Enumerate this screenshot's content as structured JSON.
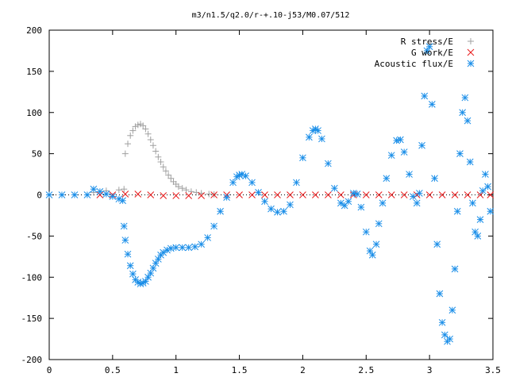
{
  "chart_data": {
    "type": "scatter",
    "title": "m3/n1.5/q2.0/r-+.10-j53/M0.07/512",
    "xlabel": "",
    "ylabel": "",
    "xlim": [
      0,
      3.5
    ],
    "ylim": [
      -200,
      200
    ],
    "x_ticks": [
      "0",
      "0.5",
      "1",
      "1.5",
      "2",
      "2.5",
      "3",
      "3.5"
    ],
    "y_ticks": [
      "200",
      "150",
      "100",
      "50",
      "0",
      "-50",
      "-100",
      "-150",
      "-200"
    ],
    "x_tick_values": [
      0,
      0.5,
      1,
      1.5,
      2,
      2.5,
      3,
      3.5
    ],
    "y_tick_values": [
      200,
      150,
      100,
      50,
      0,
      -50,
      -100,
      -150,
      -200
    ],
    "grid": false,
    "legend_position": "top-right",
    "series": [
      {
        "name": "R stress/E",
        "marker": "plus",
        "color": "#a0a0a0",
        "points": [
          [
            0.35,
            3
          ],
          [
            0.45,
            5
          ],
          [
            0.55,
            6
          ],
          [
            0.59,
            7
          ],
          [
            0.6,
            50
          ],
          [
            0.62,
            62
          ],
          [
            0.64,
            72
          ],
          [
            0.66,
            78
          ],
          [
            0.68,
            83
          ],
          [
            0.7,
            85
          ],
          [
            0.72,
            86
          ],
          [
            0.74,
            84
          ],
          [
            0.76,
            80
          ],
          [
            0.78,
            74
          ],
          [
            0.8,
            67
          ],
          [
            0.82,
            60
          ],
          [
            0.84,
            53
          ],
          [
            0.86,
            46
          ],
          [
            0.88,
            40
          ],
          [
            0.9,
            34
          ],
          [
            0.92,
            29
          ],
          [
            0.94,
            24
          ],
          [
            0.96,
            20
          ],
          [
            0.98,
            16
          ],
          [
            1.0,
            13
          ],
          [
            1.02,
            10
          ],
          [
            1.05,
            8
          ],
          [
            1.08,
            6
          ],
          [
            1.12,
            4
          ],
          [
            1.16,
            3
          ],
          [
            1.2,
            2
          ],
          [
            1.26,
            1
          ],
          [
            1.3,
            0.5
          ]
        ]
      },
      {
        "name": "G work/E",
        "marker": "cross",
        "color": "#e8191a",
        "points": [
          [
            0.4,
            0
          ],
          [
            0.5,
            0
          ],
          [
            0.6,
            1
          ],
          [
            0.7,
            1
          ],
          [
            0.8,
            0
          ],
          [
            0.9,
            -1
          ],
          [
            1.0,
            -1
          ],
          [
            1.1,
            -1
          ],
          [
            1.2,
            -1
          ],
          [
            1.3,
            0
          ],
          [
            1.4,
            0
          ],
          [
            1.5,
            0
          ],
          [
            1.6,
            0
          ],
          [
            1.7,
            0
          ],
          [
            1.8,
            0
          ],
          [
            1.9,
            0
          ],
          [
            2.0,
            0
          ],
          [
            2.1,
            0
          ],
          [
            2.2,
            0
          ],
          [
            2.3,
            0
          ],
          [
            2.4,
            0
          ],
          [
            2.5,
            0
          ],
          [
            2.6,
            0
          ],
          [
            2.7,
            0
          ],
          [
            2.8,
            0
          ],
          [
            2.9,
            0
          ],
          [
            3.0,
            0
          ],
          [
            3.1,
            0
          ],
          [
            3.2,
            0
          ],
          [
            3.3,
            0
          ],
          [
            3.4,
            0
          ],
          [
            3.48,
            0
          ]
        ]
      },
      {
        "name": "Acoustic flux/E",
        "marker": "star",
        "color": "#1a8ee8",
        "points": [
          [
            0.0,
            0
          ],
          [
            0.1,
            0
          ],
          [
            0.2,
            0
          ],
          [
            0.3,
            0
          ],
          [
            0.35,
            7
          ],
          [
            0.4,
            4
          ],
          [
            0.45,
            1
          ],
          [
            0.5,
            -2
          ],
          [
            0.55,
            -5
          ],
          [
            0.58,
            -7
          ],
          [
            0.59,
            -38
          ],
          [
            0.6,
            -55
          ],
          [
            0.62,
            -72
          ],
          [
            0.64,
            -86
          ],
          [
            0.66,
            -96
          ],
          [
            0.68,
            -103
          ],
          [
            0.7,
            -106
          ],
          [
            0.72,
            -108
          ],
          [
            0.74,
            -107
          ],
          [
            0.76,
            -105
          ],
          [
            0.78,
            -100
          ],
          [
            0.8,
            -95
          ],
          [
            0.82,
            -89
          ],
          [
            0.84,
            -83
          ],
          [
            0.86,
            -78
          ],
          [
            0.88,
            -73
          ],
          [
            0.9,
            -70
          ],
          [
            0.93,
            -67
          ],
          [
            0.96,
            -65
          ],
          [
            1.0,
            -64
          ],
          [
            1.05,
            -64
          ],
          [
            1.1,
            -64
          ],
          [
            1.15,
            -63
          ],
          [
            1.2,
            -60
          ],
          [
            1.25,
            -52
          ],
          [
            1.3,
            -38
          ],
          [
            1.35,
            -20
          ],
          [
            1.4,
            -3
          ],
          [
            1.45,
            15
          ],
          [
            1.48,
            22
          ],
          [
            1.5,
            24
          ],
          [
            1.52,
            25
          ],
          [
            1.55,
            23
          ],
          [
            1.6,
            15
          ],
          [
            1.65,
            3
          ],
          [
            1.7,
            -8
          ],
          [
            1.75,
            -17
          ],
          [
            1.8,
            -21
          ],
          [
            1.85,
            -20
          ],
          [
            1.9,
            -12
          ],
          [
            1.95,
            15
          ],
          [
            2.0,
            45
          ],
          [
            2.05,
            70
          ],
          [
            2.08,
            78
          ],
          [
            2.1,
            80
          ],
          [
            2.12,
            78
          ],
          [
            2.15,
            68
          ],
          [
            2.2,
            38
          ],
          [
            2.25,
            8
          ],
          [
            2.3,
            -10
          ],
          [
            2.33,
            -13
          ],
          [
            2.36,
            -8
          ],
          [
            2.4,
            2
          ],
          [
            2.43,
            1
          ],
          [
            2.46,
            -15
          ],
          [
            2.5,
            -45
          ],
          [
            2.53,
            -68
          ],
          [
            2.55,
            -73
          ],
          [
            2.58,
            -60
          ],
          [
            2.6,
            -35
          ],
          [
            2.63,
            -10
          ],
          [
            2.66,
            20
          ],
          [
            2.7,
            48
          ],
          [
            2.74,
            66
          ],
          [
            2.77,
            67
          ],
          [
            2.8,
            52
          ],
          [
            2.84,
            25
          ],
          [
            2.87,
            -2
          ],
          [
            2.9,
            -10
          ],
          [
            2.92,
            2
          ],
          [
            2.94,
            60
          ],
          [
            2.96,
            120
          ],
          [
            2.98,
            175
          ],
          [
            3.0,
            180
          ],
          [
            3.02,
            110
          ],
          [
            3.04,
            20
          ],
          [
            3.06,
            -60
          ],
          [
            3.08,
            -120
          ],
          [
            3.1,
            -155
          ],
          [
            3.12,
            -170
          ],
          [
            3.14,
            -178
          ],
          [
            3.16,
            -175
          ],
          [
            3.18,
            -140
          ],
          [
            3.2,
            -90
          ],
          [
            3.22,
            -20
          ],
          [
            3.24,
            50
          ],
          [
            3.26,
            100
          ],
          [
            3.28,
            118
          ],
          [
            3.3,
            90
          ],
          [
            3.32,
            40
          ],
          [
            3.34,
            -10
          ],
          [
            3.36,
            -45
          ],
          [
            3.38,
            -50
          ],
          [
            3.4,
            -30
          ],
          [
            3.42,
            5
          ],
          [
            3.44,
            25
          ],
          [
            3.46,
            10
          ],
          [
            3.48,
            -20
          ]
        ]
      }
    ]
  }
}
